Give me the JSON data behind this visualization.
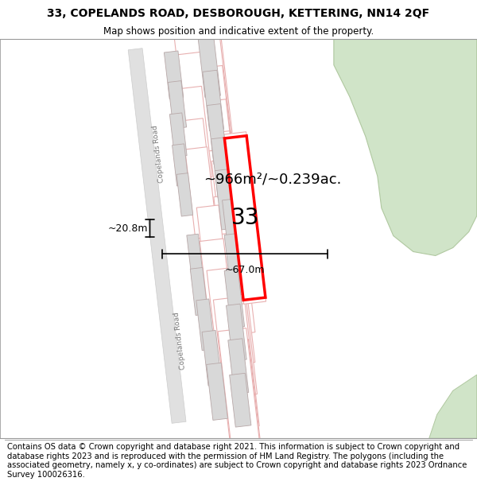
{
  "title_line1": "33, COPELANDS ROAD, DESBOROUGH, KETTERING, NN14 2QF",
  "title_line2": "Map shows position and indicative extent of the property.",
  "footer_text": "Contains OS data © Crown copyright and database right 2021. This information is subject to Crown copyright and database rights 2023 and is reproduced with the permission of HM Land Registry. The polygons (including the associated geometry, namely x, y co-ordinates) are subject to Crown copyright and database rights 2023 Ordnance Survey 100026316.",
  "background_color": "#ffffff",
  "area_text": "~966m²/~0.239ac.",
  "dim_width": "~67.0m",
  "dim_height": "~20.8m",
  "number_label": "33",
  "road_label": "Copelands Road",
  "plot_fill": "#ffffff",
  "plot_edge": "#e8b0b0",
  "building_fill": "#d8d8d8",
  "building_edge": "#b8a8a8",
  "road_fill": "#e8e8e8",
  "road_edge": "#cccccc",
  "green_fill": "#d0e4c8",
  "green_edge": "#b0c8a0",
  "highlight_edge": "#ff0000",
  "title_fontsize": 10,
  "subtitle_fontsize": 8.5,
  "footer_fontsize": 7.2
}
